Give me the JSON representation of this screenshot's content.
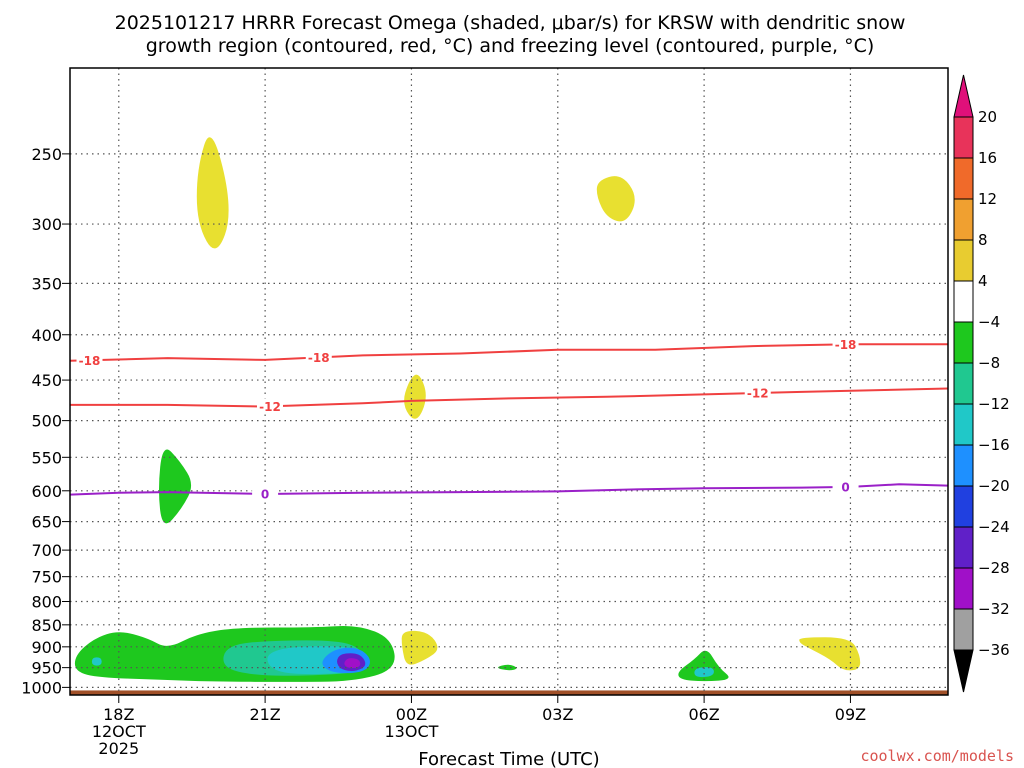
{
  "title_line1": "2025101217 HRRR Forecast Omega (shaded, μbar/s) for KRSW with dendritic snow",
  "title_line2": "growth region (contoured, red, °C) and freezing level (contoured, purple, °C)",
  "watermark": "coolwx.com/models",
  "chart_data": {
    "type": "contour",
    "xlabel": "Forecast Time (UTC)",
    "ylabel": "",
    "y_scale": "log-pressure",
    "y_reversed": true,
    "ylim": [
      1020,
      200
    ],
    "y_ticks": [
      250,
      300,
      350,
      400,
      450,
      500,
      550,
      600,
      650,
      700,
      750,
      800,
      850,
      900,
      950,
      1000
    ],
    "x_ticks": [
      {
        "hour": 18,
        "label": "18Z",
        "sub1": "12OCT",
        "sub2": "2025"
      },
      {
        "hour": 21,
        "label": "21Z",
        "sub1": "",
        "sub2": ""
      },
      {
        "hour": 24,
        "label": "00Z",
        "sub1": "13OCT",
        "sub2": ""
      },
      {
        "hour": 27,
        "label": "03Z",
        "sub1": "",
        "sub2": ""
      },
      {
        "hour": 30,
        "label": "06Z",
        "sub1": "",
        "sub2": ""
      },
      {
        "hour": 33,
        "label": "09Z",
        "sub1": "",
        "sub2": ""
      }
    ],
    "xlim": [
      17,
      35
    ],
    "grid": true,
    "colorbar": {
      "labels": [
        "20",
        "16",
        "12",
        "8",
        "4",
        "−4",
        "−8",
        "−12",
        "−16",
        "−20",
        "−24",
        "−28",
        "−32",
        "−36"
      ],
      "colors": [
        "#e8335a",
        "#f06a2a",
        "#f0a030",
        "#e8cc30",
        "#ffffff",
        "#1ec81e",
        "#20c890",
        "#20c8c8",
        "#1e90ff",
        "#2040e0",
        "#6020c8",
        "#a010c8",
        "#a0a0a0"
      ],
      "top_arrow": "#e0107a",
      "bottom_arrow": "#000000"
    },
    "temperature_contours": [
      {
        "label": "-18",
        "color": "#f04040",
        "points": [
          [
            17,
            428
          ],
          [
            19,
            425
          ],
          [
            21,
            427
          ],
          [
            23,
            422
          ],
          [
            25,
            420
          ],
          [
            27,
            416
          ],
          [
            29,
            416
          ],
          [
            31,
            412
          ],
          [
            33,
            410
          ],
          [
            35,
            410
          ]
        ],
        "label_x": [
          17.4,
          22.1,
          32.9
        ]
      },
      {
        "label": "-12",
        "color": "#f04040",
        "points": [
          [
            17,
            480
          ],
          [
            19,
            480
          ],
          [
            21,
            482
          ],
          [
            23,
            478
          ],
          [
            24,
            475
          ],
          [
            26,
            472
          ],
          [
            28,
            470
          ],
          [
            30,
            467
          ],
          [
            32,
            464
          ],
          [
            35,
            460
          ]
        ],
        "label_x": [
          21.1,
          31.1
        ]
      },
      {
        "label": "0",
        "color": "#9a20c8",
        "points": [
          [
            17,
            606
          ],
          [
            18,
            603
          ],
          [
            19,
            602
          ],
          [
            21,
            605
          ],
          [
            23,
            603
          ],
          [
            25,
            602
          ],
          [
            27,
            601
          ],
          [
            28.5,
            598
          ],
          [
            30,
            596
          ],
          [
            32,
            595
          ],
          [
            33,
            594
          ],
          [
            34,
            590
          ],
          [
            35,
            592
          ]
        ],
        "label_x": [
          21.0,
          32.9
        ]
      }
    ],
    "omega_regions": [
      {
        "value": 4,
        "color": "#e8e030",
        "points": [
          [
            19.9,
            230
          ],
          [
            20.35,
            290
          ],
          [
            20.0,
            328
          ],
          [
            19.6,
            300
          ],
          [
            19.6,
            260
          ]
        ]
      },
      {
        "value": 4,
        "color": "#e8e030",
        "points": [
          [
            27.8,
            268
          ],
          [
            28.3,
            263
          ],
          [
            28.65,
            280
          ],
          [
            28.4,
            300
          ],
          [
            28.0,
            295
          ],
          [
            27.8,
            280
          ]
        ]
      },
      {
        "value": 4,
        "color": "#e8e030",
        "points": [
          [
            23.95,
            450
          ],
          [
            24.15,
            440
          ],
          [
            24.35,
            470
          ],
          [
            24.1,
            505
          ],
          [
            23.8,
            480
          ]
        ]
      },
      {
        "value": -4,
        "color": "#1ec81e",
        "points": [
          [
            18.9,
            530
          ],
          [
            19.25,
            555
          ],
          [
            19.55,
            590
          ],
          [
            19.3,
            628
          ],
          [
            18.9,
            665
          ],
          [
            18.8,
            600
          ]
        ]
      },
      {
        "value": 4,
        "color": "#e8e030",
        "points": [
          [
            23.8,
            862
          ],
          [
            24.35,
            865
          ],
          [
            24.6,
            905
          ],
          [
            24.3,
            930
          ],
          [
            23.9,
            950
          ],
          [
            23.8,
            900
          ]
        ]
      },
      {
        "value": -4,
        "color": "#1ec81e",
        "points": [
          [
            17.1,
            920
          ],
          [
            17.5,
            880
          ],
          [
            18.0,
            862
          ],
          [
            18.6,
            880
          ],
          [
            19.0,
            905
          ],
          [
            19.6,
            870
          ],
          [
            20.4,
            856
          ],
          [
            22.0,
            856
          ],
          [
            22.9,
            850
          ],
          [
            23.6,
            880
          ],
          [
            23.7,
            955
          ],
          [
            22.8,
            985
          ],
          [
            21.5,
            986
          ],
          [
            19.9,
            985
          ],
          [
            18.8,
            980
          ],
          [
            17.6,
            975
          ],
          [
            17.1,
            960
          ]
        ]
      },
      {
        "value": -8,
        "color": "#20c890",
        "points": [
          [
            20.2,
            895
          ],
          [
            21.2,
            885
          ],
          [
            22.5,
            885
          ],
          [
            23.0,
            905
          ],
          [
            23.1,
            960
          ],
          [
            22.0,
            970
          ],
          [
            20.8,
            970
          ],
          [
            20.1,
            950
          ]
        ]
      },
      {
        "value": -12,
        "color": "#20c8c8",
        "points": [
          [
            21.0,
            905
          ],
          [
            22.5,
            895
          ],
          [
            23.1,
            915
          ],
          [
            23.15,
            955
          ],
          [
            22.2,
            968
          ],
          [
            21.1,
            962
          ]
        ]
      },
      {
        "value": -16,
        "color": "#1e90ff",
        "points": [
          [
            22.4,
            905
          ],
          [
            22.9,
            900
          ],
          [
            23.2,
            930
          ],
          [
            23.05,
            962
          ],
          [
            22.4,
            965
          ],
          [
            22.1,
            940
          ]
        ]
      },
      {
        "value": -24,
        "color": "#6020c8",
        "points": [
          [
            22.55,
            915
          ],
          [
            22.95,
            915
          ],
          [
            23.1,
            945
          ],
          [
            22.85,
            960
          ],
          [
            22.55,
            955
          ],
          [
            22.45,
            935
          ]
        ]
      },
      {
        "value": -28,
        "color": "#a010c8",
        "points": [
          [
            22.7,
            925
          ],
          [
            22.95,
            930
          ],
          [
            22.95,
            950
          ],
          [
            22.7,
            952
          ],
          [
            22.6,
            940
          ]
        ]
      },
      {
        "value": -8,
        "color": "#20c8c8",
        "points": [
          [
            17.45,
            925
          ],
          [
            17.65,
            925
          ],
          [
            17.65,
            945
          ],
          [
            17.45,
            945
          ]
        ]
      },
      {
        "value": -4,
        "color": "#1ec81e",
        "points": [
          [
            25.7,
            950
          ],
          [
            26.0,
            940
          ],
          [
            26.2,
            952
          ],
          [
            26.0,
            958
          ]
        ]
      },
      {
        "value": -4,
        "color": "#1ec81e",
        "points": [
          [
            29.45,
            960
          ],
          [
            29.8,
            930
          ],
          [
            30.05,
            900
          ],
          [
            30.3,
            950
          ],
          [
            30.6,
            980
          ],
          [
            30.0,
            985
          ],
          [
            29.5,
            980
          ]
        ]
      },
      {
        "value": -8,
        "color": "#20c8c8",
        "points": [
          [
            29.8,
            950
          ],
          [
            30.2,
            948
          ],
          [
            30.2,
            972
          ],
          [
            29.8,
            975
          ]
        ]
      },
      {
        "value": 4,
        "color": "#e8e030",
        "points": [
          [
            31.95,
            878
          ],
          [
            33.0,
            878
          ],
          [
            33.2,
            920
          ],
          [
            33.2,
            955
          ],
          [
            32.85,
            958
          ],
          [
            32.6,
            930
          ],
          [
            32.1,
            900
          ],
          [
            31.95,
            890
          ]
        ]
      }
    ],
    "terrain": {
      "top_pressure": 1008,
      "color": "#a05028"
    }
  }
}
